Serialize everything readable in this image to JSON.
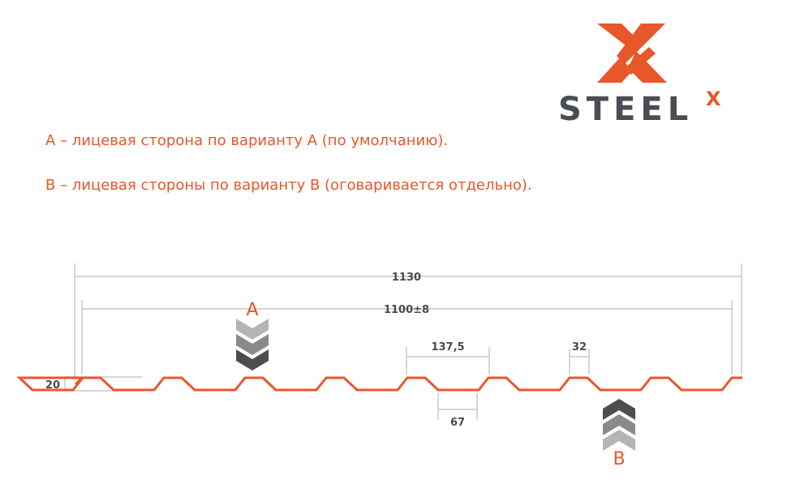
{
  "logo": {
    "text": "STEEL",
    "superscript": "X",
    "brand_color": "#e8572a",
    "text_color": "#4a4d52"
  },
  "notes": [
    "А – лицевая сторона по варианту А (по умолчанию).",
    "В – лицевая стороны по варианту В (оговаривается отдельно)."
  ],
  "dimensions": {
    "total_width": "1130",
    "useful_width": "1100±8",
    "pitch": "137,5",
    "top_width": "32",
    "bottom_width": "67",
    "height": "20"
  },
  "sides": {
    "a": "A",
    "b": "B"
  },
  "colors": {
    "profile": "#e8572a",
    "dimension_lines": "#c8c8c8",
    "text": "#4a4a4a"
  }
}
